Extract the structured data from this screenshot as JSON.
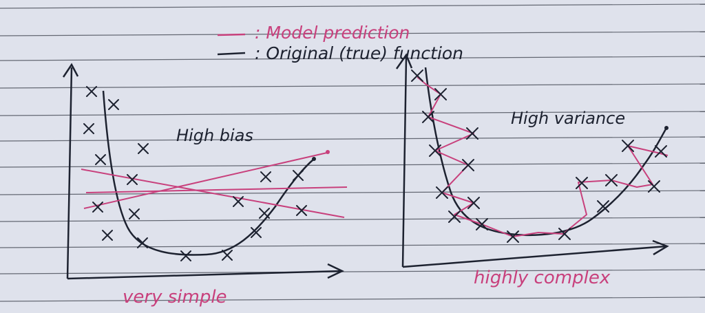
{
  "legend": {
    "model_label": ": Model prediction",
    "true_label": ": Original (true) function"
  },
  "left_panel": {
    "annotation": "High bias",
    "caption": "very simple"
  },
  "right_panel": {
    "annotation": "High variance",
    "caption": "highly complex"
  },
  "colors": {
    "paper": "#dfe2ec",
    "rule_line": "#3a3f4a",
    "ink": "#1d2230",
    "pink": "#c8407c"
  }
}
